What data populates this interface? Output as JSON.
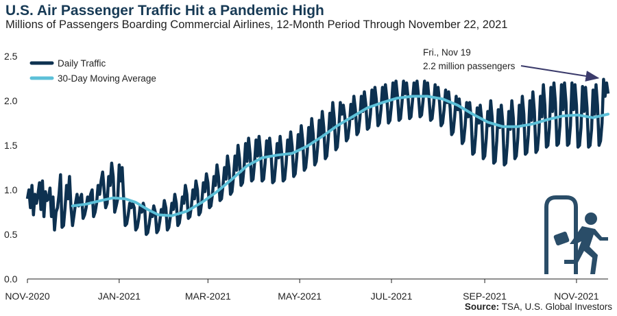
{
  "title": "U.S. Air Passenger Traffic Hit a Pandemic High",
  "subtitle": "Millions of Passengers Boarding Commercial Airlines, 12-Month Period Through November 22, 2021",
  "source": {
    "label": "Source:",
    "text": "TSA, U.S. Global Investors"
  },
  "colors": {
    "daily": "#0d3150",
    "average": "#5cc0d8",
    "title": "#173a55",
    "icon": "#2a4d68",
    "axis": "#1f1f1f"
  },
  "icon": "person-exiting-door-icon",
  "chart_data": {
    "type": "line",
    "xlabel": "",
    "ylabel": "",
    "ylim": [
      0,
      2.5
    ],
    "yticks": [
      "0.0",
      "0.5",
      "1.0",
      "1.5",
      "2.0",
      "2.5"
    ],
    "xlim": [
      "2020-11-01",
      "2021-11-22"
    ],
    "xticks": [
      {
        "label": "NOV-2020",
        "date": "2020-11-01"
      },
      {
        "label": "JAN-2021",
        "date": "2021-01-01"
      },
      {
        "label": "MAR-2021",
        "date": "2021-03-01"
      },
      {
        "label": "MAY-2021",
        "date": "2021-05-01"
      },
      {
        "label": "JUL-2021",
        "date": "2021-07-01"
      },
      {
        "label": "SEP-2021",
        "date": "2021-09-01"
      },
      {
        "label": "NOV-2021",
        "date": "2021-11-01"
      }
    ],
    "legend": {
      "placement": "top-left"
    },
    "grid": false,
    "series": [
      {
        "name": "Daily Traffic",
        "weekly_points": [
          {
            "x": "2020-11-01",
            "y": [
              0.9,
              1.0,
              0.8,
              1.05,
              0.72,
              0.95,
              0.85
            ]
          },
          {
            "x": "2020-11-08",
            "y": [
              0.95,
              1.08,
              0.78,
              1.1,
              0.7,
              0.98,
              0.88
            ]
          },
          {
            "x": "2020-11-15",
            "y": [
              0.9,
              1.02,
              0.7,
              0.92,
              0.55,
              0.75,
              0.8
            ]
          },
          {
            "x": "2020-11-22",
            "y": [
              0.95,
              1.17,
              0.58,
              0.6,
              0.8,
              1.05,
              0.9
            ]
          },
          {
            "x": "2020-11-29",
            "y": [
              1.15,
              0.8,
              0.6,
              0.72,
              0.85,
              0.95,
              0.82
            ]
          },
          {
            "x": "2020-12-06",
            "y": [
              0.9,
              0.95,
              0.68,
              0.72,
              0.8,
              0.92,
              0.85
            ]
          },
          {
            "x": "2020-12-13",
            "y": [
              0.95,
              1.0,
              0.7,
              0.75,
              0.85,
              1.05,
              0.95
            ]
          },
          {
            "x": "2020-12-20",
            "y": [
              1.1,
              1.2,
              1.0,
              0.8,
              0.85,
              1.15,
              1.05
            ]
          },
          {
            "x": "2020-12-27",
            "y": [
              1.3,
              1.15,
              0.75,
              0.82,
              0.9,
              1.28,
              1.1
            ]
          },
          {
            "x": "2021-01-03",
            "y": [
              1.25,
              0.9,
              0.6,
              0.62,
              0.72,
              0.85,
              0.8
            ]
          },
          {
            "x": "2021-01-10",
            "y": [
              0.85,
              0.8,
              0.55,
              0.58,
              0.68,
              0.82,
              0.75
            ]
          },
          {
            "x": "2021-01-17",
            "y": [
              0.85,
              0.78,
              0.5,
              0.52,
              0.62,
              0.75,
              0.7
            ]
          },
          {
            "x": "2021-01-24",
            "y": [
              0.82,
              0.75,
              0.52,
              0.55,
              0.65,
              0.78,
              0.72
            ]
          },
          {
            "x": "2021-01-31",
            "y": [
              0.88,
              0.8,
              0.55,
              0.58,
              0.7,
              0.85,
              0.78
            ]
          },
          {
            "x": "2021-02-07",
            "y": [
              0.95,
              0.85,
              0.6,
              0.63,
              0.75,
              0.92,
              0.85
            ]
          },
          {
            "x": "2021-02-14",
            "y": [
              1.05,
              0.95,
              0.68,
              0.7,
              0.82,
              1.0,
              0.9
            ]
          },
          {
            "x": "2021-02-21",
            "y": [
              1.1,
              1.0,
              0.72,
              0.75,
              0.88,
              1.08,
              0.98
            ]
          },
          {
            "x": "2021-02-28",
            "y": [
              1.18,
              1.08,
              0.8,
              0.82,
              0.95,
              1.15,
              1.05
            ]
          },
          {
            "x": "2021-03-07",
            "y": [
              1.28,
              1.15,
              0.88,
              0.9,
              1.05,
              1.25,
              1.12
            ]
          },
          {
            "x": "2021-03-14",
            "y": [
              1.38,
              1.25,
              0.95,
              0.98,
              1.15,
              1.38,
              1.22
            ]
          },
          {
            "x": "2021-03-21",
            "y": [
              1.5,
              1.35,
              1.05,
              1.08,
              1.25,
              1.52,
              1.32
            ]
          },
          {
            "x": "2021-03-28",
            "y": [
              1.58,
              1.4,
              1.1,
              1.12,
              1.3,
              1.56,
              1.38
            ]
          },
          {
            "x": "2021-04-04",
            "y": [
              1.6,
              1.42,
              1.1,
              1.12,
              1.3,
              1.55,
              1.38
            ]
          },
          {
            "x": "2021-04-11",
            "y": [
              1.58,
              1.4,
              1.08,
              1.1,
              1.28,
              1.52,
              1.36
            ]
          },
          {
            "x": "2021-04-18",
            "y": [
              1.6,
              1.42,
              1.1,
              1.12,
              1.3,
              1.56,
              1.4
            ]
          },
          {
            "x": "2021-04-25",
            "y": [
              1.65,
              1.48,
              1.15,
              1.18,
              1.36,
              1.62,
              1.45
            ]
          },
          {
            "x": "2021-05-02",
            "y": [
              1.72,
              1.55,
              1.22,
              1.25,
              1.42,
              1.7,
              1.52
            ]
          },
          {
            "x": "2021-05-09",
            "y": [
              1.8,
              1.62,
              1.28,
              1.32,
              1.5,
              1.78,
              1.6
            ]
          },
          {
            "x": "2021-05-16",
            "y": [
              1.88,
              1.7,
              1.35,
              1.38,
              1.58,
              1.86,
              1.68
            ]
          },
          {
            "x": "2021-05-23",
            "y": [
              1.98,
              1.8,
              1.45,
              1.48,
              1.68,
              1.98,
              1.85
            ]
          },
          {
            "x": "2021-05-30",
            "y": [
              1.95,
              1.82,
              1.55,
              1.58,
              1.72,
              1.96,
              1.8
            ]
          },
          {
            "x": "2021-06-06",
            "y": [
              2.05,
              1.9,
              1.62,
              1.65,
              1.8,
              2.05,
              1.88
            ]
          },
          {
            "x": "2021-06-13",
            "y": [
              2.1,
              1.95,
              1.68,
              1.7,
              1.85,
              2.12,
              1.95
            ]
          },
          {
            "x": "2021-06-20",
            "y": [
              2.15,
              2.0,
              1.72,
              1.75,
              1.9,
              2.15,
              2.0
            ]
          },
          {
            "x": "2021-06-27",
            "y": [
              2.18,
              2.02,
              1.75,
              1.78,
              1.95,
              2.2,
              2.05
            ]
          },
          {
            "x": "2021-07-04",
            "y": [
              2.22,
              2.05,
              1.78,
              1.8,
              1.98,
              2.22,
              2.08
            ]
          },
          {
            "x": "2021-07-11",
            "y": [
              2.2,
              2.04,
              1.8,
              1.82,
              2.0,
              2.2,
              2.06
            ]
          },
          {
            "x": "2021-07-18",
            "y": [
              2.22,
              2.05,
              1.82,
              1.84,
              2.0,
              2.22,
              2.08
            ]
          },
          {
            "x": "2021-07-25",
            "y": [
              2.2,
              2.02,
              1.78,
              1.8,
              1.96,
              2.18,
              2.04
            ]
          },
          {
            "x": "2021-08-01",
            "y": [
              2.15,
              1.98,
              1.72,
              1.75,
              1.9,
              2.12,
              1.98
            ]
          },
          {
            "x": "2021-08-08",
            "y": [
              2.1,
              1.92,
              1.62,
              1.65,
              1.82,
              2.05,
              1.9
            ]
          },
          {
            "x": "2021-08-15",
            "y": [
              2.02,
              1.85,
              1.52,
              1.55,
              1.72,
              1.98,
              1.82
            ]
          },
          {
            "x": "2021-08-22",
            "y": [
              1.98,
              1.8,
              1.4,
              1.42,
              1.62,
              1.92,
              1.75
            ]
          },
          {
            "x": "2021-08-29",
            "y": [
              1.95,
              1.78,
              1.35,
              1.38,
              1.58,
              1.88,
              1.72
            ]
          },
          {
            "x": "2021-09-05",
            "y": [
              2.0,
              1.8,
              1.3,
              1.32,
              1.55,
              1.9,
              1.7
            ]
          },
          {
            "x": "2021-09-12",
            "y": [
              1.95,
              1.75,
              1.28,
              1.3,
              1.52,
              1.88,
              1.68
            ]
          },
          {
            "x": "2021-09-19",
            "y": [
              2.0,
              1.8,
              1.35,
              1.38,
              1.58,
              1.95,
              1.72
            ]
          },
          {
            "x": "2021-09-26",
            "y": [
              2.05,
              1.85,
              1.4,
              1.42,
              1.62,
              2.0,
              1.78
            ]
          },
          {
            "x": "2021-10-03",
            "y": [
              2.1,
              1.88,
              1.42,
              1.45,
              1.65,
              2.05,
              1.82
            ]
          },
          {
            "x": "2021-10-10",
            "y": [
              2.18,
              1.95,
              1.48,
              1.5,
              1.7,
              2.15,
              1.88
            ]
          },
          {
            "x": "2021-10-17",
            "y": [
              2.2,
              1.98,
              1.5,
              1.52,
              1.72,
              2.18,
              1.9
            ]
          },
          {
            "x": "2021-10-24",
            "y": [
              2.2,
              1.98,
              1.5,
              1.52,
              1.72,
              2.2,
              1.9
            ]
          },
          {
            "x": "2021-10-31",
            "y": [
              2.18,
              1.95,
              1.48,
              1.5,
              1.7,
              2.16,
              1.88
            ]
          },
          {
            "x": "2021-11-07",
            "y": [
              2.15,
              1.92,
              1.48,
              1.5,
              1.68,
              2.12,
              1.85
            ]
          },
          {
            "x": "2021-11-14",
            "y": [
              2.18,
              1.95,
              1.5,
              1.55,
              1.75,
              2.24,
              2.05
            ]
          },
          {
            "x": "2021-11-21",
            "y": [
              2.2,
              2.08
            ]
          }
        ]
      },
      {
        "name": "30-Day Moving Average",
        "points": [
          {
            "x": "2020-12-01",
            "y": 0.82
          },
          {
            "x": "2020-12-10",
            "y": 0.84
          },
          {
            "x": "2020-12-20",
            "y": 0.88
          },
          {
            "x": "2020-12-28",
            "y": 0.91
          },
          {
            "x": "2021-01-05",
            "y": 0.9
          },
          {
            "x": "2021-01-12",
            "y": 0.86
          },
          {
            "x": "2021-01-20",
            "y": 0.78
          },
          {
            "x": "2021-01-27",
            "y": 0.72
          },
          {
            "x": "2021-02-05",
            "y": 0.71
          },
          {
            "x": "2021-02-15",
            "y": 0.76
          },
          {
            "x": "2021-02-25",
            "y": 0.86
          },
          {
            "x": "2021-03-07",
            "y": 0.98
          },
          {
            "x": "2021-03-17",
            "y": 1.12
          },
          {
            "x": "2021-03-27",
            "y": 1.27
          },
          {
            "x": "2021-04-06",
            "y": 1.36
          },
          {
            "x": "2021-04-16",
            "y": 1.39
          },
          {
            "x": "2021-04-26",
            "y": 1.41
          },
          {
            "x": "2021-05-06",
            "y": 1.49
          },
          {
            "x": "2021-05-16",
            "y": 1.6
          },
          {
            "x": "2021-05-26",
            "y": 1.72
          },
          {
            "x": "2021-06-05",
            "y": 1.82
          },
          {
            "x": "2021-06-15",
            "y": 1.92
          },
          {
            "x": "2021-06-25",
            "y": 1.98
          },
          {
            "x": "2021-07-05",
            "y": 2.03
          },
          {
            "x": "2021-07-15",
            "y": 2.05
          },
          {
            "x": "2021-07-25",
            "y": 2.05
          },
          {
            "x": "2021-08-04",
            "y": 2.02
          },
          {
            "x": "2021-08-14",
            "y": 1.95
          },
          {
            "x": "2021-08-24",
            "y": 1.85
          },
          {
            "x": "2021-09-03",
            "y": 1.76
          },
          {
            "x": "2021-09-13",
            "y": 1.71
          },
          {
            "x": "2021-09-23",
            "y": 1.71
          },
          {
            "x": "2021-10-03",
            "y": 1.74
          },
          {
            "x": "2021-10-13",
            "y": 1.79
          },
          {
            "x": "2021-10-23",
            "y": 1.83
          },
          {
            "x": "2021-11-02",
            "y": 1.84
          },
          {
            "x": "2021-11-12",
            "y": 1.81
          },
          {
            "x": "2021-11-22",
            "y": 1.85
          }
        ]
      }
    ],
    "annotation": {
      "date_label": "Fri., Nov 19",
      "value_label": "2.2 million passengers",
      "x": "2021-11-19",
      "y": 2.24
    }
  }
}
